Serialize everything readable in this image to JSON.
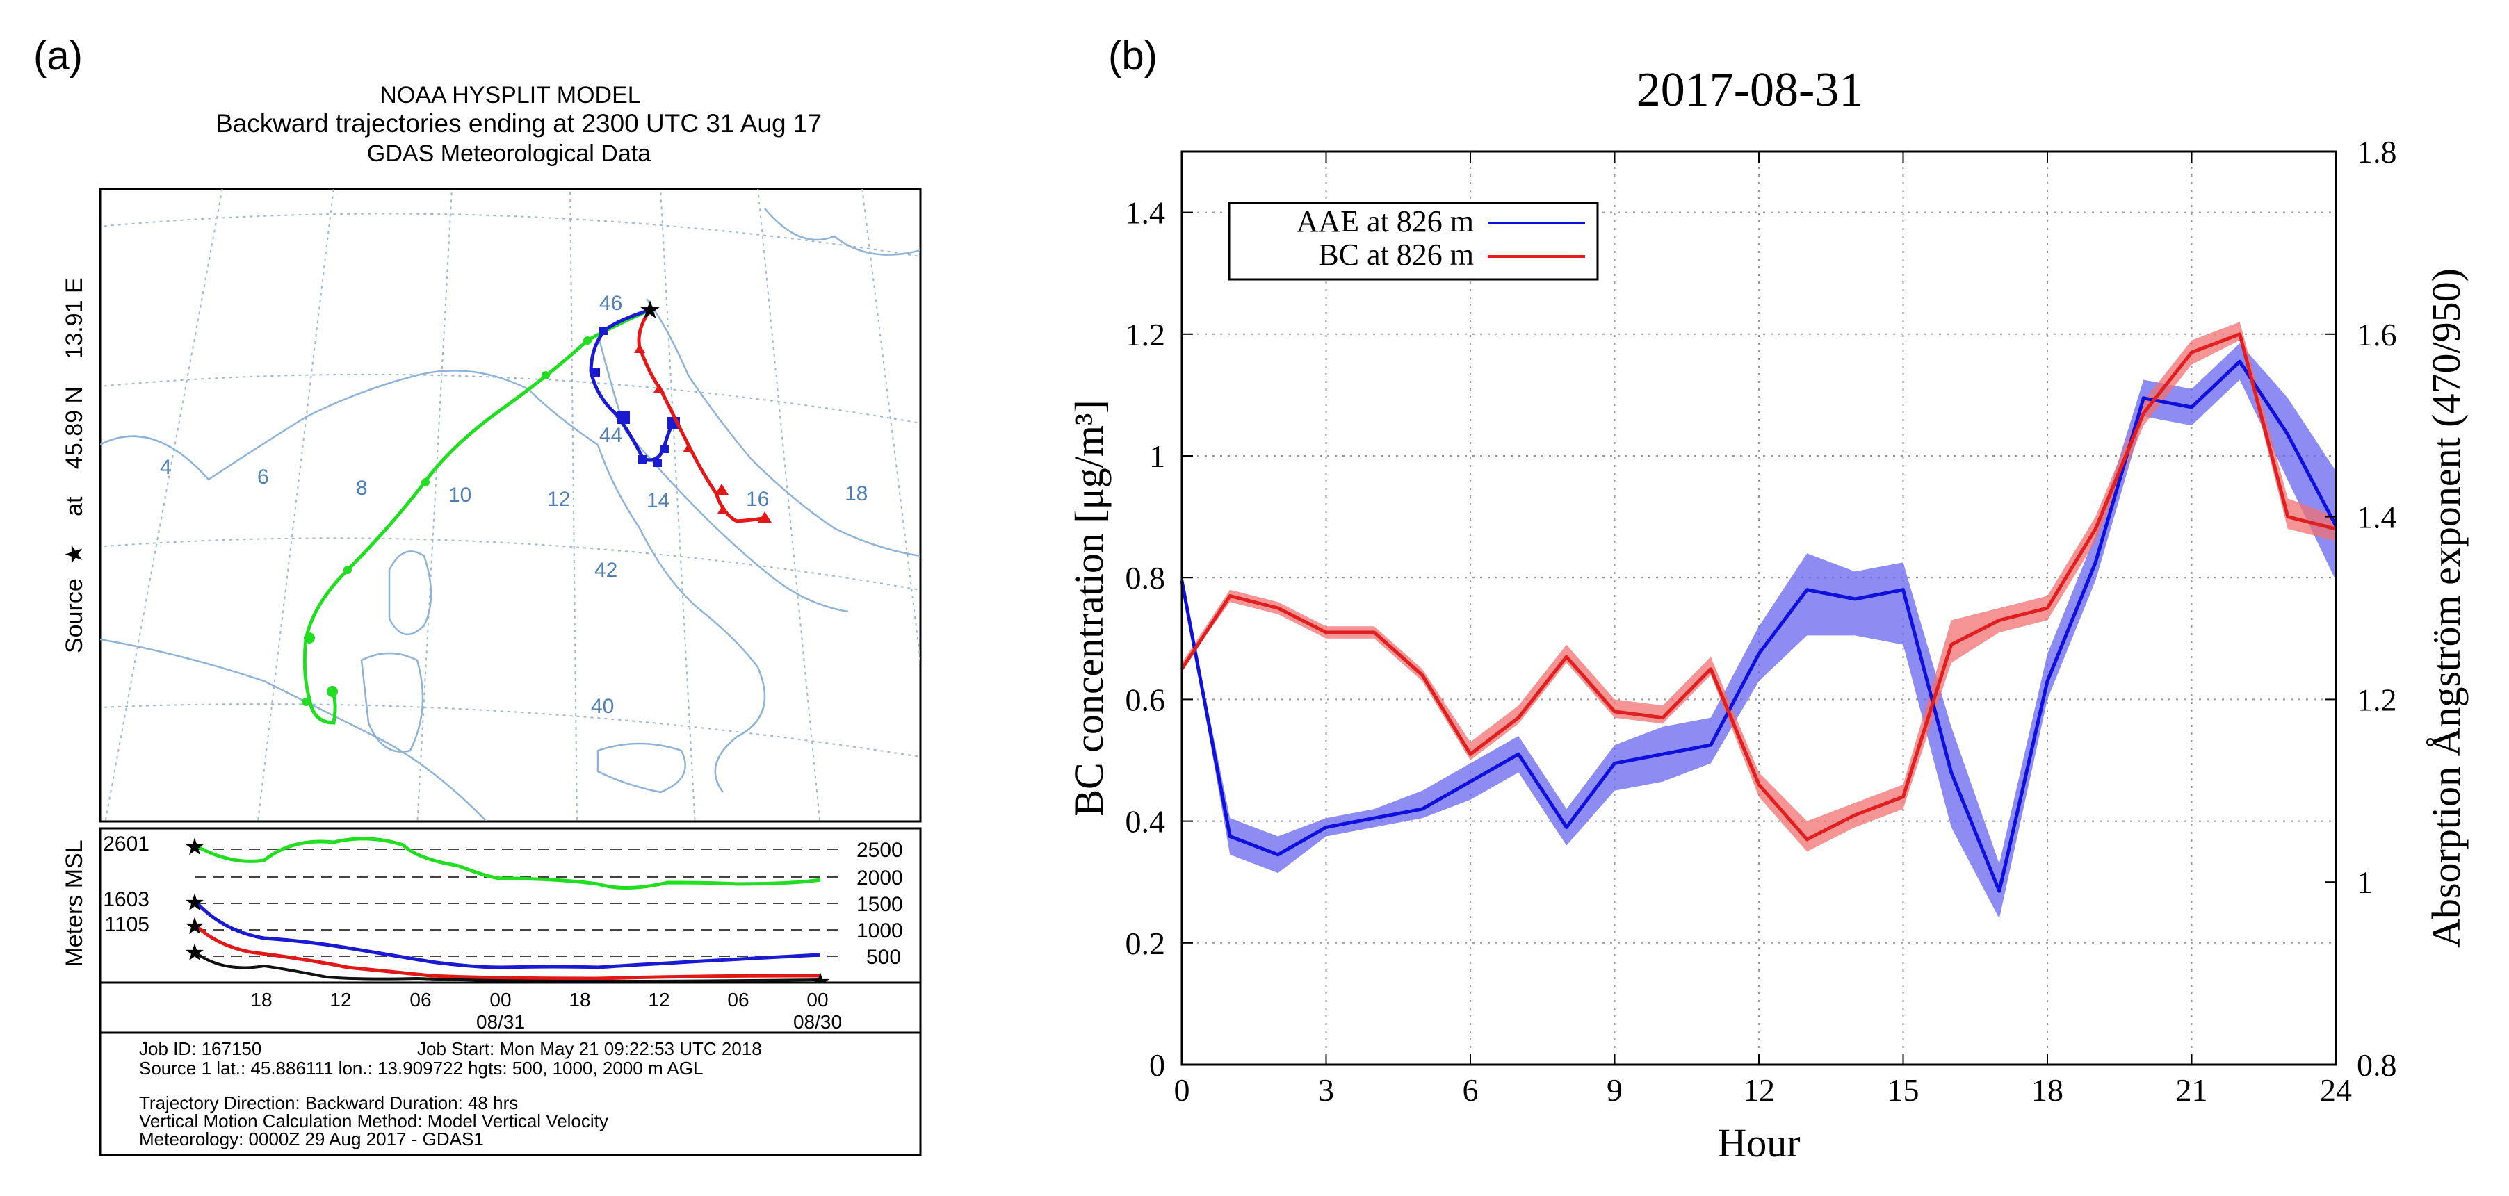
{
  "panel_a": {
    "label": "(a)",
    "title_lines": [
      "NOAA HYSPLIT MODEL",
      "Backward trajectories ending at 2300 UTC 31 Aug 17",
      "GDAS Meteorological Data"
    ],
    "side_label": {
      "prefix": "Source",
      "middle": "at",
      "lat": "45.89 N",
      "lon": "13.91 E"
    },
    "map_lon_labels": [
      "4",
      "6",
      "8",
      "10",
      "12",
      "14",
      "16",
      "18"
    ],
    "map_lat_labels": [
      "46",
      "44",
      "42",
      "40"
    ],
    "height_axis_label": "Meters MSL",
    "height_ticks": [
      "2500",
      "2000",
      "1500",
      "1000",
      "500"
    ],
    "start_heights": [
      "2601",
      "1603",
      "1105"
    ],
    "time_ticks": [
      "18",
      "12",
      "06",
      "00",
      "18",
      "12",
      "06",
      "00"
    ],
    "time_dates": [
      "08/31",
      "08/30"
    ],
    "info": {
      "line1_left": "Job ID: 167150",
      "line1_right": "Job Start: Mon May 21 09:22:53 UTC 2018",
      "line2": "Source 1 lat.: 45.886111  lon.: 13.909722  hgts: 500, 1000, 2000 m AGL",
      "line3": "Trajectory Direction: Backward      Duration: 48 hrs",
      "line4": "Vertical Motion Calculation Method:          Model Vertical Velocity",
      "line5": "Meteorology: 0000Z 29 Aug 2017 - GDAS1"
    },
    "colors": {
      "green": "#22dd22",
      "blue": "#1a1ad0",
      "red": "#e01818",
      "grid": "#aac4dc",
      "coast": "#8fb3d6"
    }
  },
  "panel_b": {
    "label": "(b)",
    "chart_data": {
      "type": "line",
      "title": "2017-08-31",
      "xlabel": "Hour",
      "ylabel_left": "BC concentration [μg/m³]",
      "ylabel_right": "Absorption Ångström exponent (470/950)",
      "xlim": [
        0,
        24
      ],
      "ylim_left": [
        0,
        1.5
      ],
      "ylim_right": [
        0.8,
        1.8
      ],
      "x_ticks": [
        "0",
        "3",
        "6",
        "9",
        "12",
        "15",
        "18",
        "21",
        "24"
      ],
      "y_left_ticks": [
        "0",
        "0.2",
        "0.4",
        "0.6",
        "0.8",
        "1",
        "1.2",
        "1.4"
      ],
      "y_right_ticks": [
        "0.8",
        "1",
        "1.2",
        "1.4",
        "1.6",
        "1.8"
      ],
      "grid": true,
      "legend_position": "top-left",
      "x": [
        0,
        1,
        2,
        3,
        4,
        5,
        6,
        7,
        8,
        9,
        10,
        11,
        12,
        13,
        14,
        15,
        16,
        17,
        18,
        19,
        20,
        21,
        22,
        23,
        24
      ],
      "series": [
        {
          "name": "AAE at 826 m",
          "axis": "right",
          "color": "#1010dd",
          "band_color": "#6666ee",
          "values": [
            1.33,
            1.05,
            1.03,
            1.06,
            1.07,
            1.08,
            1.11,
            1.14,
            1.06,
            1.13,
            1.14,
            1.15,
            1.25,
            1.32,
            1.31,
            1.32,
            1.12,
            0.99,
            1.22,
            1.35,
            1.53,
            1.52,
            1.57,
            1.49,
            1.39
          ],
          "lower": [
            1.33,
            1.03,
            1.01,
            1.05,
            1.06,
            1.07,
            1.09,
            1.12,
            1.04,
            1.1,
            1.11,
            1.13,
            1.22,
            1.27,
            1.27,
            1.26,
            1.06,
            0.96,
            1.2,
            1.33,
            1.51,
            1.5,
            1.55,
            1.44,
            1.33
          ],
          "upper": [
            1.33,
            1.07,
            1.05,
            1.07,
            1.08,
            1.1,
            1.13,
            1.16,
            1.08,
            1.15,
            1.17,
            1.18,
            1.28,
            1.36,
            1.34,
            1.35,
            1.17,
            1.02,
            1.25,
            1.38,
            1.55,
            1.54,
            1.59,
            1.53,
            1.45
          ]
        },
        {
          "name": "BC at 826 m",
          "axis": "left",
          "color": "#e02020",
          "band_color": "#f07070",
          "values": [
            0.65,
            0.77,
            0.75,
            0.71,
            0.71,
            0.64,
            0.51,
            0.57,
            0.67,
            0.58,
            0.57,
            0.65,
            0.46,
            0.37,
            0.41,
            0.44,
            0.69,
            0.73,
            0.75,
            0.88,
            1.07,
            1.17,
            1.2,
            0.9,
            0.88
          ],
          "lower": [
            0.65,
            0.76,
            0.74,
            0.7,
            0.7,
            0.63,
            0.5,
            0.56,
            0.66,
            0.57,
            0.56,
            0.64,
            0.44,
            0.35,
            0.39,
            0.42,
            0.66,
            0.71,
            0.73,
            0.86,
            1.05,
            1.15,
            1.19,
            0.88,
            0.86
          ],
          "upper": [
            0.66,
            0.78,
            0.76,
            0.72,
            0.72,
            0.65,
            0.53,
            0.59,
            0.69,
            0.6,
            0.59,
            0.67,
            0.48,
            0.4,
            0.43,
            0.46,
            0.73,
            0.75,
            0.77,
            0.9,
            1.09,
            1.19,
            1.22,
            0.93,
            0.9
          ]
        }
      ]
    }
  }
}
